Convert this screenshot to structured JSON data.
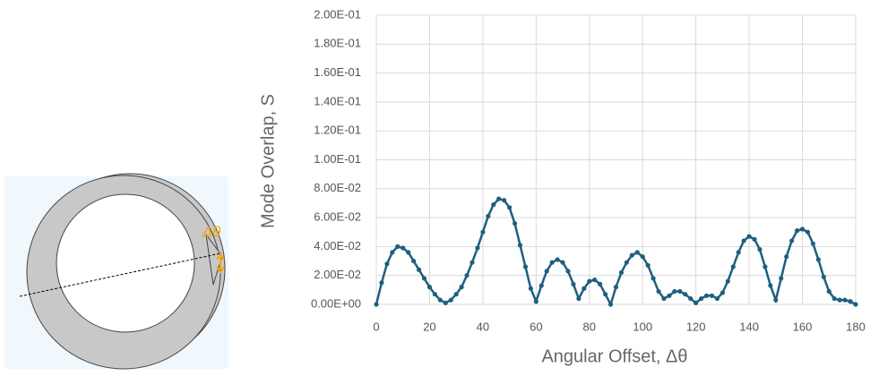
{
  "diagram": {
    "label": "Δθ"
  },
  "chart_data": {
    "type": "line",
    "xlabel": "Angular Offset, Δθ",
    "ylabel": "Mode Overlap, S",
    "x": [
      0,
      2,
      4,
      6,
      8,
      10,
      12,
      14,
      16,
      18,
      20,
      22,
      24,
      26,
      28,
      30,
      32,
      34,
      36,
      38,
      40,
      42,
      44,
      46,
      48,
      50,
      52,
      54,
      56,
      58,
      60,
      62,
      64,
      66,
      68,
      70,
      72,
      74,
      76,
      78,
      80,
      82,
      84,
      86,
      88,
      90,
      92,
      94,
      96,
      98,
      100,
      102,
      104,
      106,
      108,
      110,
      112,
      114,
      116,
      118,
      120,
      122,
      124,
      126,
      128,
      130,
      132,
      134,
      136,
      138,
      140,
      142,
      144,
      146,
      148,
      150,
      152,
      154,
      156,
      158,
      160,
      162,
      164,
      166,
      168,
      170,
      172,
      174,
      176,
      178,
      180
    ],
    "series": [
      {
        "color": "#1f5f7e",
        "values": [
          0.0,
          0.015,
          0.028,
          0.036,
          0.04,
          0.039,
          0.036,
          0.03,
          0.024,
          0.018,
          0.012,
          0.007,
          0.003,
          0.001,
          0.003,
          0.007,
          0.012,
          0.02,
          0.029,
          0.039,
          0.05,
          0.061,
          0.069,
          0.073,
          0.072,
          0.067,
          0.056,
          0.041,
          0.026,
          0.011,
          0.002,
          0.013,
          0.023,
          0.029,
          0.031,
          0.029,
          0.023,
          0.014,
          0.004,
          0.011,
          0.016,
          0.017,
          0.014,
          0.007,
          0.0,
          0.012,
          0.022,
          0.029,
          0.034,
          0.036,
          0.033,
          0.027,
          0.018,
          0.009,
          0.004,
          0.006,
          0.009,
          0.009,
          0.007,
          0.004,
          0.001,
          0.004,
          0.006,
          0.006,
          0.004,
          0.008,
          0.016,
          0.026,
          0.036,
          0.044,
          0.047,
          0.045,
          0.038,
          0.026,
          0.013,
          0.003,
          0.018,
          0.033,
          0.044,
          0.051,
          0.052,
          0.05,
          0.042,
          0.031,
          0.019,
          0.009,
          0.004,
          0.003,
          0.003,
          0.002,
          0.0
        ]
      }
    ],
    "xlim": [
      0,
      180
    ],
    "xticks": [
      0,
      20,
      40,
      60,
      80,
      100,
      120,
      140,
      160,
      180
    ],
    "ylim": [
      0,
      0.2
    ],
    "yticks": [
      {
        "value": 0,
        "label": "0.00E+00"
      },
      {
        "value": 0.02,
        "label": "2.00E-02"
      },
      {
        "value": 0.04,
        "label": "4.00E-02"
      },
      {
        "value": 0.06,
        "label": "6.00E-02"
      },
      {
        "value": 0.08,
        "label": "8.00E-02"
      },
      {
        "value": 0.1,
        "label": "1.00E-01"
      },
      {
        "value": 0.12,
        "label": "1.20E-01"
      },
      {
        "value": 0.14,
        "label": "1.40E-01"
      },
      {
        "value": 0.16,
        "label": "1.60E-01"
      },
      {
        "value": 0.18,
        "label": "1.80E-01"
      },
      {
        "value": 0.2,
        "label": "2.00E-01"
      }
    ],
    "grid": true
  }
}
